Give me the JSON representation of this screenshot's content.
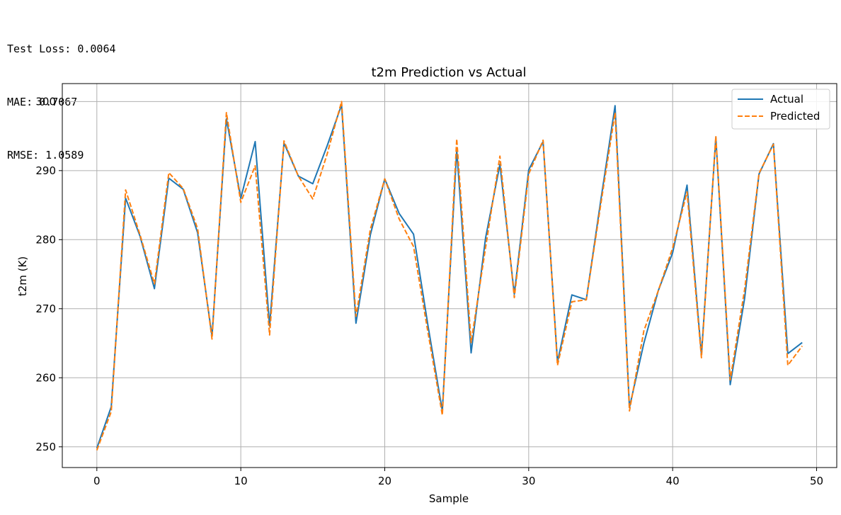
{
  "output": {
    "lines": [
      "Test Loss: 0.0064",
      "MAE: 0.7067",
      "RMSE: 1.0589"
    ]
  },
  "chart_data": {
    "type": "line",
    "title": "t2m Prediction vs Actual",
    "xlabel": "Sample",
    "ylabel": "t2m (K)",
    "xlim": [
      -2.4,
      51.4
    ],
    "ylim": [
      247,
      302.6
    ],
    "xticks": [
      0,
      10,
      20,
      30,
      40,
      50
    ],
    "yticks": [
      250,
      260,
      270,
      280,
      290,
      300
    ],
    "grid": true,
    "legend_position": "top-right",
    "x": [
      0,
      1,
      2,
      3,
      4,
      5,
      6,
      7,
      8,
      9,
      10,
      11,
      12,
      13,
      14,
      15,
      16,
      17,
      18,
      19,
      20,
      21,
      22,
      23,
      24,
      25,
      26,
      27,
      28,
      29,
      30,
      31,
      32,
      33,
      34,
      35,
      36,
      37,
      38,
      39,
      40,
      41,
      42,
      43,
      44,
      45,
      46,
      47,
      48,
      49
    ],
    "series": [
      {
        "name": "Actual",
        "color": "#1f77b4",
        "style": "solid",
        "values": [
          249.8,
          255.8,
          286.0,
          280.5,
          272.9,
          288.9,
          287.3,
          281.0,
          266.0,
          297.5,
          286.0,
          294.2,
          267.5,
          294.0,
          289.2,
          288.1,
          293.6,
          299.5,
          267.9,
          280.7,
          288.8,
          283.8,
          280.8,
          267.6,
          255.2,
          293.0,
          263.6,
          280.2,
          290.9,
          272.1,
          290.1,
          294.2,
          262.3,
          272.0,
          271.3,
          285.6,
          299.4,
          255.7,
          265.0,
          272.6,
          278.1,
          287.9,
          263.3,
          294.8,
          259.0,
          271.5,
          289.5,
          293.9,
          263.5,
          265.1
        ]
      },
      {
        "name": "Predicted",
        "color": "#ff7f0e",
        "style": "dashed",
        "values": [
          249.5,
          255.1,
          287.2,
          280.7,
          273.6,
          289.7,
          287.4,
          281.6,
          265.6,
          298.4,
          285.4,
          290.7,
          266.2,
          294.3,
          289.2,
          285.9,
          292.4,
          300.0,
          268.9,
          281.5,
          288.8,
          283.0,
          279.0,
          266.6,
          254.6,
          294.6,
          265.1,
          278.8,
          292.1,
          271.6,
          289.5,
          294.4,
          261.8,
          271.0,
          271.3,
          285.0,
          298.4,
          255.2,
          266.8,
          272.6,
          278.8,
          286.9,
          262.9,
          295.0,
          259.7,
          272.8,
          289.6,
          293.8,
          261.8,
          264.6
        ]
      }
    ]
  }
}
